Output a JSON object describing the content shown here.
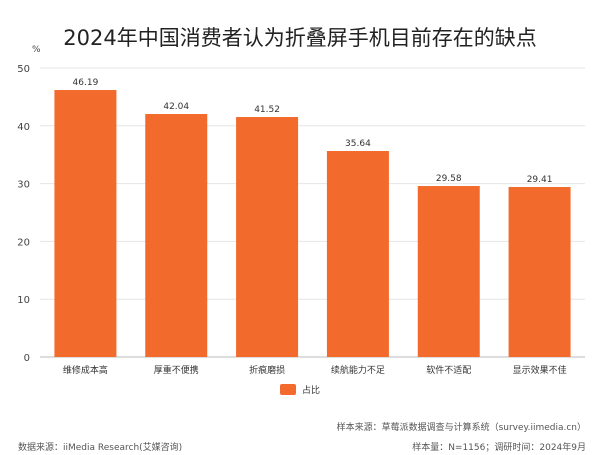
{
  "chart_data": {
    "type": "bar",
    "title": "2024年中国消费者认为折叠屏手机目前存在的缺点",
    "ylabel": "%",
    "ylim": [
      0,
      50
    ],
    "yticks": [
      0,
      10,
      20,
      30,
      40,
      50
    ],
    "grid": true,
    "categories": [
      "维修成本高",
      "厚重不便携",
      "折痕磨损",
      "续航能力不足",
      "软件不适配",
      "显示效果不佳"
    ],
    "series": [
      {
        "name": "占比",
        "values": [
          46.19,
          42.04,
          41.52,
          35.64,
          29.58,
          29.41
        ],
        "color": "#F26B2C"
      }
    ],
    "legend_placement": "bottom"
  },
  "footer": {
    "data_source": "数据来源：iiMedia Research(艾媒咨询)",
    "sample_source": "样本来源：草莓派数据调查与计算系统（survey.iimedia.cn）",
    "sample_size": "样本量：N=1156；调研时间：2024年9月"
  }
}
